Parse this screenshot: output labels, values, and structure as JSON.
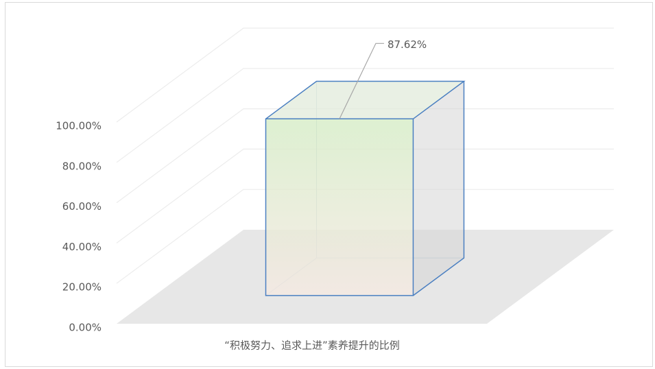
{
  "chart_data": {
    "type": "bar3d",
    "categories": [
      "“积极努力、追求上进”素养提升的比例"
    ],
    "values": [
      87.62
    ],
    "value_labels": [
      "87.62%"
    ],
    "color": "#d5ecc6",
    "edge_color": "#4a7fc1",
    "ylim": [
      0,
      100
    ],
    "yticks": [
      {
        "value": 0,
        "label": "0.00%"
      },
      {
        "value": 20,
        "label": "20.00%"
      },
      {
        "value": 40,
        "label": "40.00%"
      },
      {
        "value": 60,
        "label": "60.00%"
      },
      {
        "value": 80,
        "label": "80.00%"
      },
      {
        "value": 100,
        "label": "100.00%"
      }
    ],
    "grid": true
  }
}
